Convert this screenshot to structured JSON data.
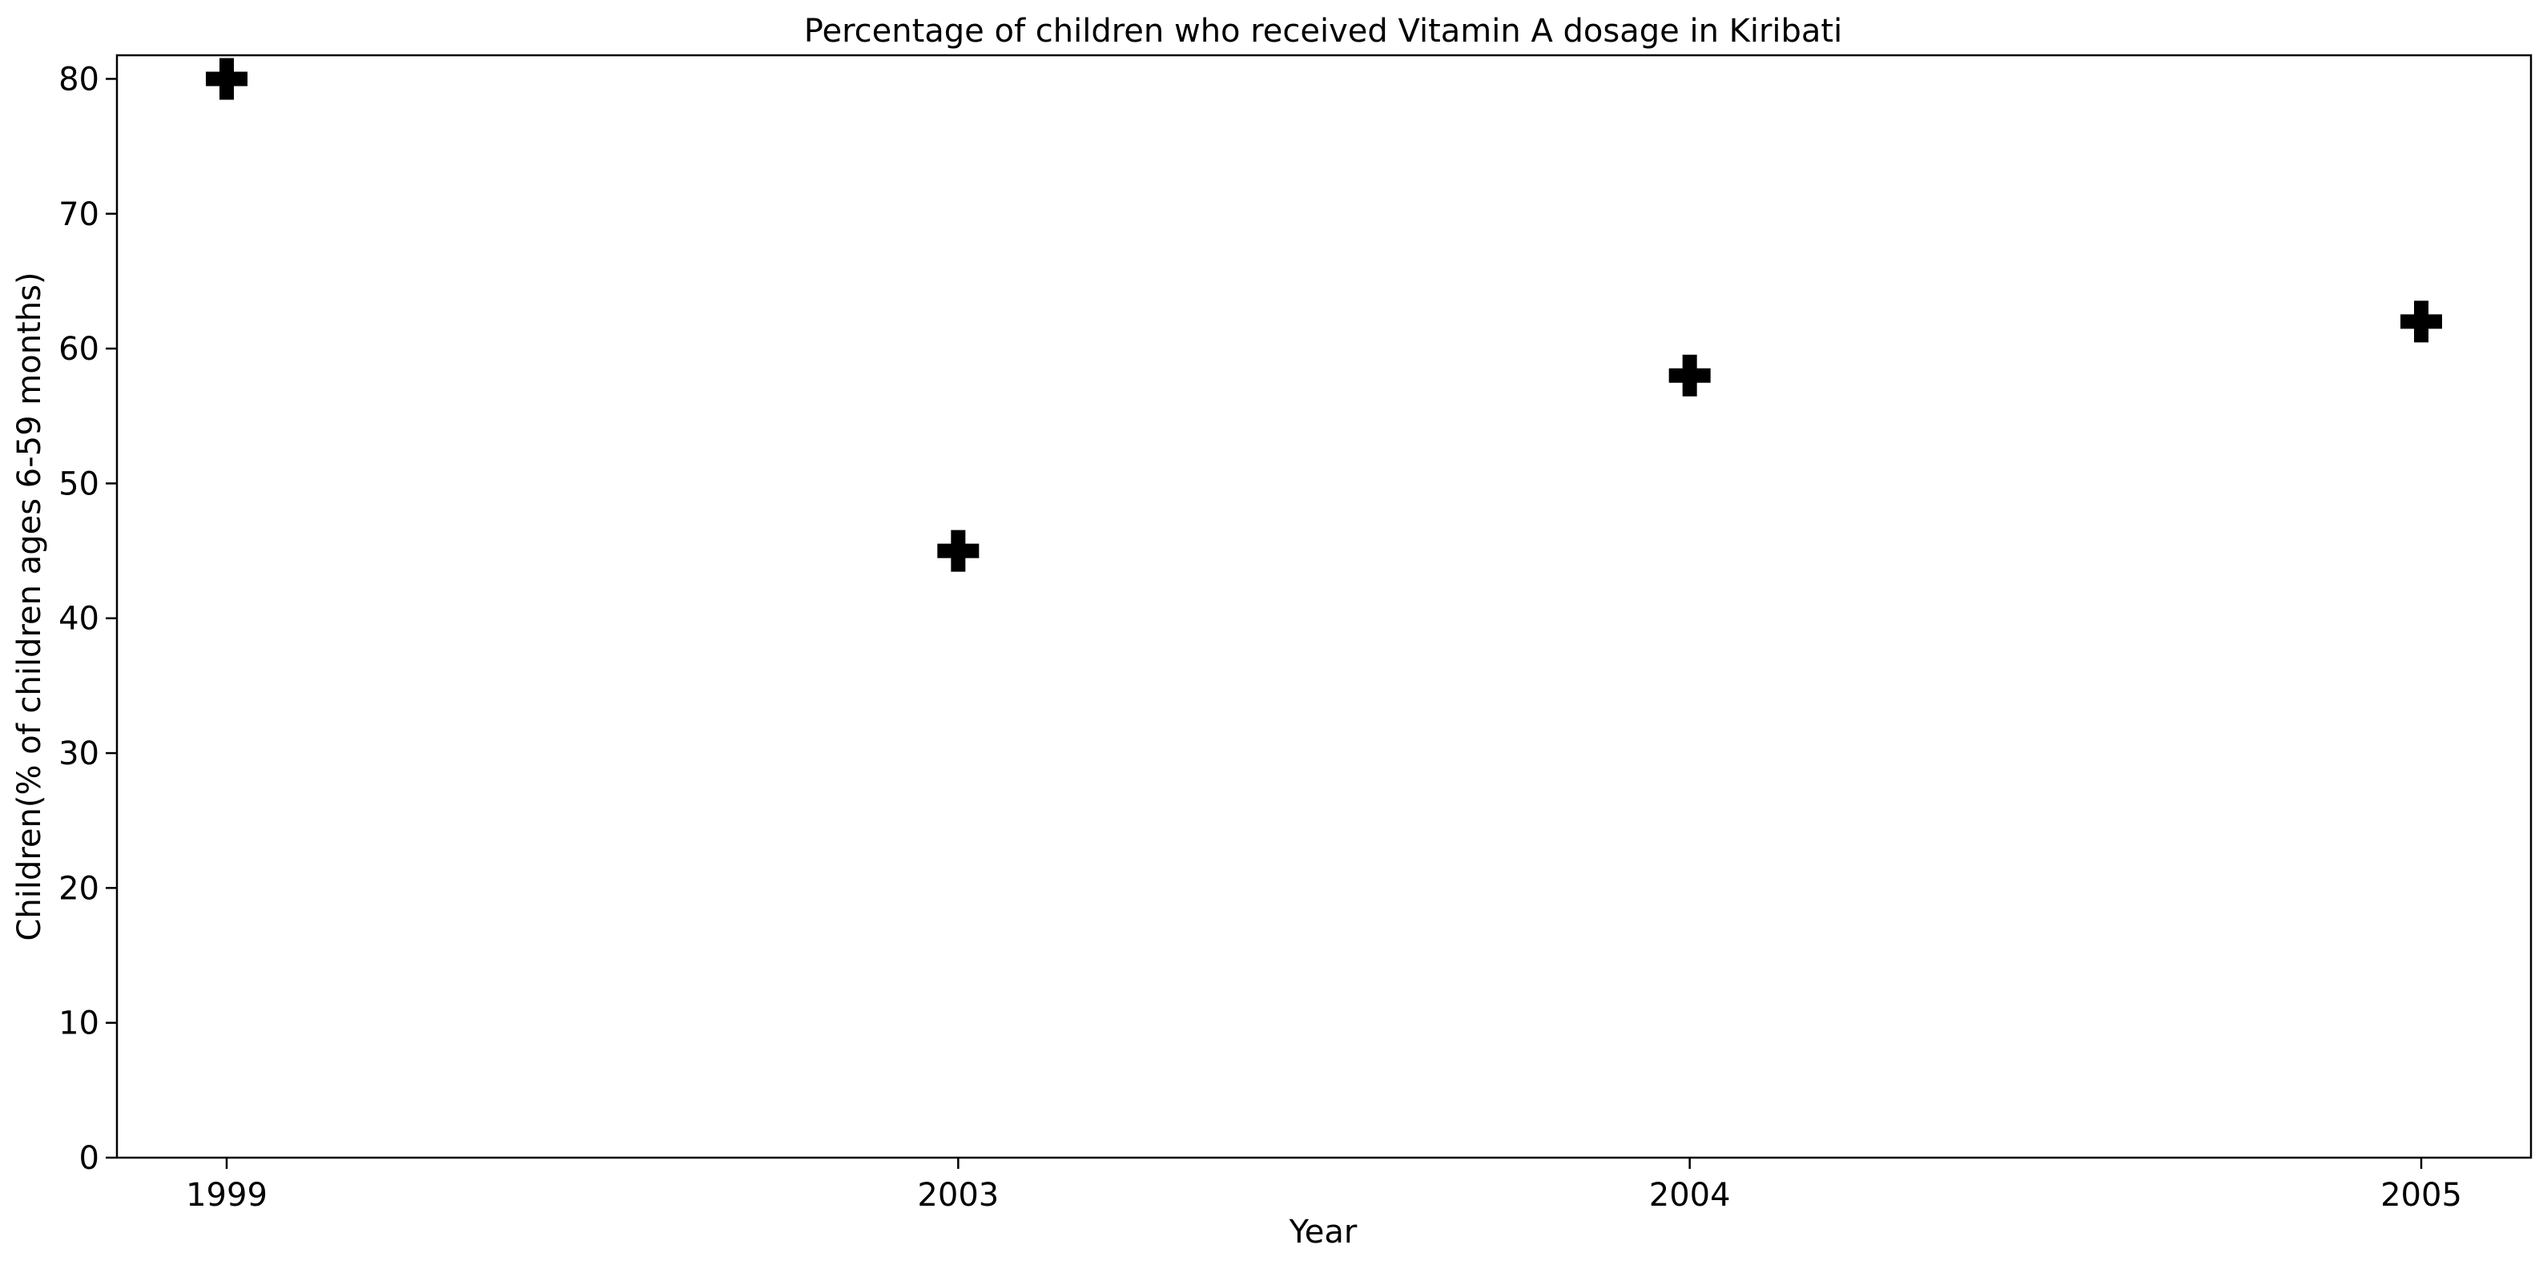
{
  "chart_data": {
    "type": "scatter",
    "title": "Percentage of children who received Vitamin A dosage in Kiribati",
    "xlabel": "Year",
    "ylabel": "Children(% of children ages 6-59 months)",
    "categories": [
      "1999",
      "2003",
      "2004",
      "2005"
    ],
    "series": [
      {
        "values": [
          80,
          45,
          58,
          62
        ],
        "marker": "plus-filled",
        "color": "#000000"
      }
    ],
    "ylim": [
      0,
      81.75
    ],
    "yticks": [
      0,
      10,
      20,
      30,
      40,
      50,
      60,
      70,
      80
    ],
    "grid": false,
    "legend": "none"
  }
}
